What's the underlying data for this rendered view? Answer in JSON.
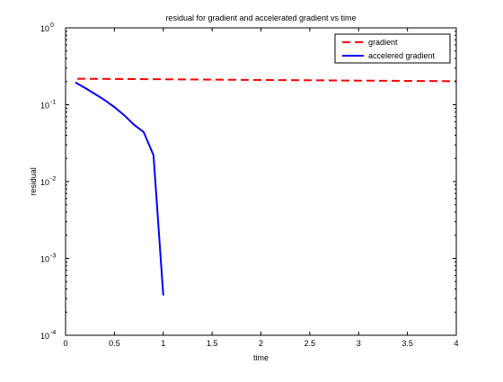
{
  "chart_data": {
    "type": "line",
    "title": "residual for gradient and accelerated gradient vs time",
    "xlabel": "time",
    "ylabel": "residual",
    "xlim": [
      0,
      4
    ],
    "ylim": [
      0.0001,
      1
    ],
    "yscale": "log",
    "grid": false,
    "legend_position": "top-right",
    "xticks": [
      0,
      0.5,
      1,
      1.5,
      2,
      2.5,
      3,
      3.5,
      4
    ],
    "xtick_labels": [
      "0",
      "0.5",
      "1",
      "1.5",
      "2",
      "2.5",
      "3",
      "3.5",
      "4"
    ],
    "yticks": [
      {
        "value": 0.0001,
        "base": "10",
        "exp": "-4"
      },
      {
        "value": 0.001,
        "base": "10",
        "exp": "-3"
      },
      {
        "value": 0.01,
        "base": "10",
        "exp": "-2"
      },
      {
        "value": 0.1,
        "base": "10",
        "exp": "-1"
      },
      {
        "value": 1,
        "base": "10",
        "exp": "0"
      }
    ],
    "series": [
      {
        "name": "gradient",
        "color": "#ff0000",
        "style": "dashed",
        "x": [
          0.12,
          0.5,
          1.0,
          1.5,
          2.0,
          2.5,
          3.0,
          3.5,
          4.0
        ],
        "y": [
          0.218,
          0.216,
          0.214,
          0.212,
          0.21,
          0.208,
          0.206,
          0.204,
          0.202
        ]
      },
      {
        "name": "accelered gradient",
        "color": "#0000ff",
        "style": "solid",
        "x": [
          0.1,
          0.2,
          0.3,
          0.4,
          0.5,
          0.6,
          0.7,
          0.8,
          0.9,
          1.0
        ],
        "y": [
          0.195,
          0.165,
          0.138,
          0.115,
          0.093,
          0.073,
          0.055,
          0.044,
          0.022,
          0.00033
        ]
      }
    ]
  }
}
